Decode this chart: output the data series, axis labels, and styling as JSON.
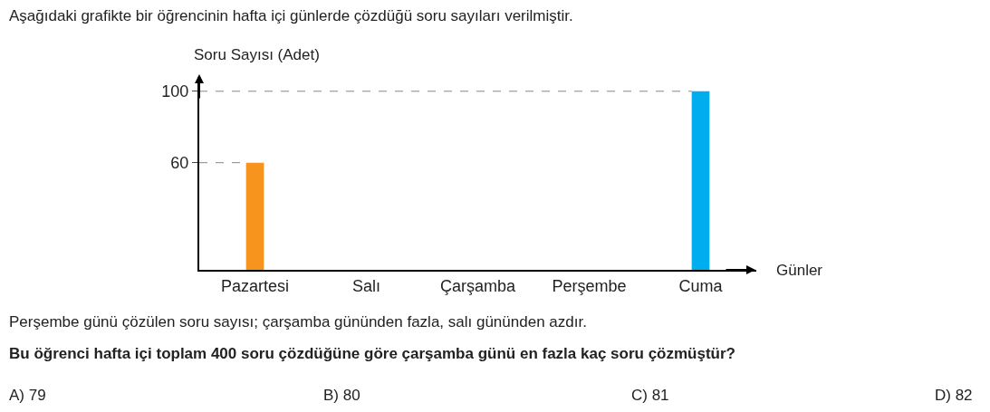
{
  "chart_data": {
    "type": "bar",
    "title": "Aşağıdaki grafikte bir öğrencinin hafta içi günlerde çözdüğü soru sayıları verilmiştir.",
    "xlabel": "Günler",
    "ylabel": "Soru Sayısı (Adet)",
    "categories": [
      "Pazartesi",
      "Salı",
      "Çarşamba",
      "Perşembe",
      "Cuma"
    ],
    "values": [
      60,
      null,
      null,
      null,
      100
    ],
    "colors": [
      "#f7941d",
      null,
      null,
      null,
      "#00aeef"
    ],
    "ylim": [
      0,
      108
    ],
    "yticks": [
      60,
      100
    ],
    "grid": false,
    "ref_lines": [
      {
        "axis": "y",
        "value": 60,
        "line_style": "dashed",
        "color": "#888888"
      },
      {
        "axis": "y",
        "value": 100,
        "line_style": "dashed",
        "color": "#888888"
      }
    ],
    "annotations": [
      "Perşembe günü çözülen soru sayısı; çarşamba gününden fazla, salı gününden azdır.",
      "Bu öğrenci hafta içi toplam 400 soru çözdüğüne göre çarşamba günü en fazla kaç soru çözmüştür?",
      "A) 79",
      "B) 80",
      "C) 81",
      "D) 82"
    ]
  }
}
